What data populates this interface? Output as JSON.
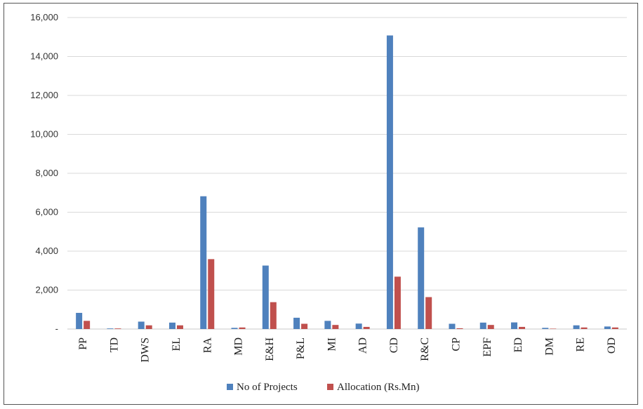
{
  "chart_data": {
    "type": "bar",
    "categories": [
      "PP",
      "TD",
      "DWS",
      "EL",
      "RA",
      "MD",
      "E&H",
      "P&L",
      "MI",
      "AD",
      "CD",
      "R&C",
      "CP",
      "EPF",
      "ED",
      "DM",
      "RE",
      "OD"
    ],
    "series": [
      {
        "name": "No of Projects",
        "color": "#4f81bd",
        "values": [
          830,
          30,
          380,
          330,
          6820,
          60,
          3260,
          580,
          420,
          280,
          15080,
          5220,
          270,
          330,
          340,
          60,
          190,
          130
        ]
      },
      {
        "name": "Allocation (Rs.Mn)",
        "color": "#c0504d",
        "values": [
          420,
          30,
          190,
          190,
          3590,
          80,
          1380,
          270,
          210,
          110,
          2690,
          1640,
          40,
          210,
          110,
          20,
          80,
          80
        ]
      }
    ],
    "ylim": [
      0,
      16000
    ],
    "yticks": [
      {
        "value": 0,
        "label": "-"
      },
      {
        "value": 2000,
        "label": "2,000"
      },
      {
        "value": 4000,
        "label": "4,000"
      },
      {
        "value": 6000,
        "label": "6,000"
      },
      {
        "value": 8000,
        "label": "8,000"
      },
      {
        "value": 10000,
        "label": "10,000"
      },
      {
        "value": 12000,
        "label": "12,000"
      },
      {
        "value": 14000,
        "label": "14,000"
      },
      {
        "value": 16000,
        "label": "16,000"
      }
    ],
    "grid": true,
    "legend_position": "bottom-center"
  }
}
